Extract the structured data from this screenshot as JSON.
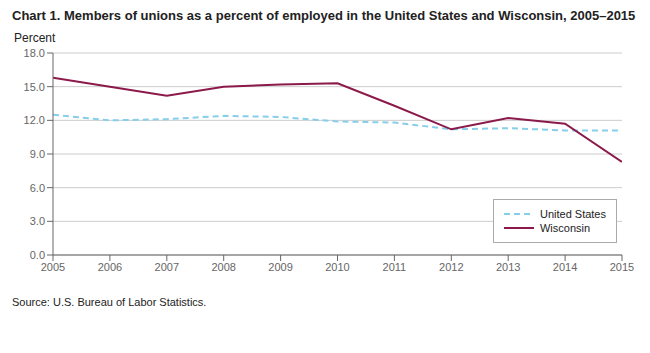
{
  "chart_data": {
    "type": "line",
    "title": "Chart 1. Members of unions as a percent of employed in the United States and Wisconsin, 2005–2015",
    "ylabel": "Percent",
    "annotations": [
      "Source: U.S. Bureau of Labor Statistics."
    ],
    "x": [
      2005,
      2006,
      2007,
      2008,
      2009,
      2010,
      2011,
      2012,
      2013,
      2014,
      2015
    ],
    "series": [
      {
        "name": "United States",
        "color": "#87CEEB",
        "line_style": "dashed",
        "values": [
          12.5,
          12.0,
          12.1,
          12.4,
          12.3,
          11.9,
          11.8,
          11.2,
          11.3,
          11.1,
          11.1
        ]
      },
      {
        "name": "Wisconsin",
        "color": "#8B1A4A",
        "line_style": "solid",
        "values": [
          15.8,
          15.0,
          14.2,
          15.0,
          15.2,
          15.3,
          13.3,
          11.2,
          12.2,
          11.7,
          8.3
        ]
      }
    ],
    "xlim": [
      2005,
      2015
    ],
    "xticks": [
      2005,
      2006,
      2007,
      2008,
      2009,
      2010,
      2011,
      2012,
      2013,
      2014,
      2015
    ],
    "ylim": [
      0.0,
      18.0
    ],
    "yticks": [
      {
        "value": 0,
        "label": "0.0"
      },
      {
        "value": 3,
        "label": "3.0"
      },
      {
        "value": 6,
        "label": "6.0"
      },
      {
        "value": 9,
        "label": "9.0"
      },
      {
        "value": 12,
        "label": "12.0"
      },
      {
        "value": 15,
        "label": "15.0"
      },
      {
        "value": 18,
        "label": "18.0"
      }
    ],
    "grid": true,
    "legend": "lower right"
  }
}
